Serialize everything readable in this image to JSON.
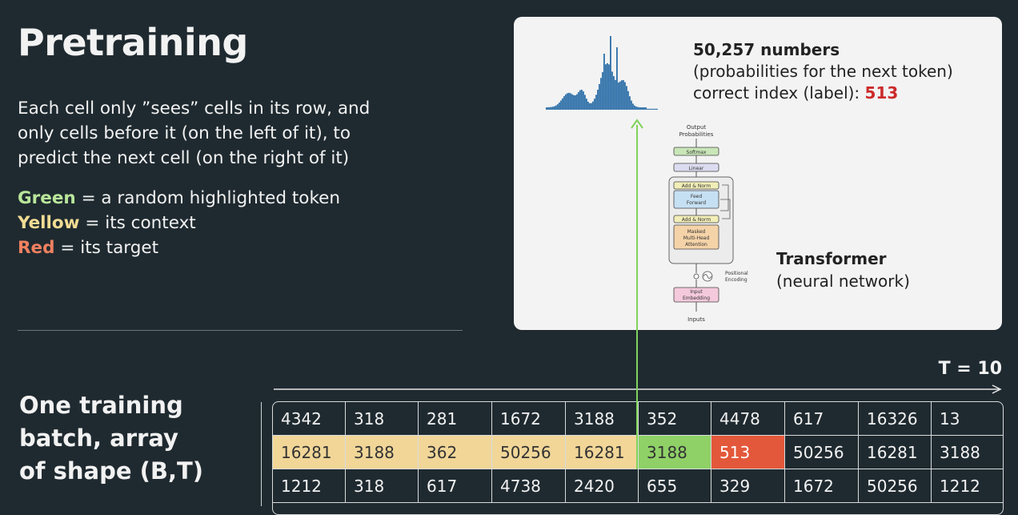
{
  "title": "Pretraining",
  "description": "Each cell only ”sees” cells in its row, and only cells before it (on the left of it), to predict the next cell (on the right of it)",
  "legend": {
    "green_label": "Green",
    "green_text": " = a random highlighted token",
    "yellow_label": "Yellow",
    "yellow_text": " = its context",
    "red_label": "Red",
    "red_text": " = its target"
  },
  "output": {
    "line1": "50,257 numbers",
    "line2": "(probabilities for the next token)",
    "line3_prefix": "correct index (label): ",
    "label_index": "513"
  },
  "transformer": {
    "name": "Transformer",
    "subtitle": "(neural network)",
    "arch_labels": {
      "output_probs_1": "Output",
      "output_probs_2": "Probabilities",
      "softmax": "Softmax",
      "linear": "Linear",
      "add_norm": "Add & Norm",
      "feed_forward_1": "Feed",
      "feed_forward_2": "Forward",
      "masked_1": "Masked",
      "masked_2": "Multi-Head",
      "masked_3": "Attention",
      "positional_1": "Positional",
      "positional_2": "Encoding",
      "input_emb_1": "Input",
      "input_emb_2": "Embedding",
      "inputs": "Inputs"
    }
  },
  "t_label": "T = 10",
  "batch_label": [
    "One training",
    "batch, array",
    "of shape (B,T)"
  ],
  "colors": {
    "green": "#8fd167",
    "yellow": "#f1d698",
    "red": "#e3583a",
    "bars": "#2e6fa8"
  },
  "table": {
    "rows": [
      [
        "4342",
        "318",
        "281",
        "1672",
        "3188",
        "352",
        "4478",
        "617",
        "16326",
        "13"
      ],
      [
        "16281",
        "3188",
        "362",
        "50256",
        "16281",
        "3188",
        "513",
        "50256",
        "16281",
        "3188"
      ],
      [
        "1212",
        "318",
        "617",
        "4738",
        "2420",
        "655",
        "329",
        "1672",
        "50256",
        "1212"
      ]
    ],
    "highlight_row": 1,
    "context_cols": [
      0,
      1,
      2,
      3,
      4
    ],
    "token_col": 5,
    "target_col": 6
  }
}
